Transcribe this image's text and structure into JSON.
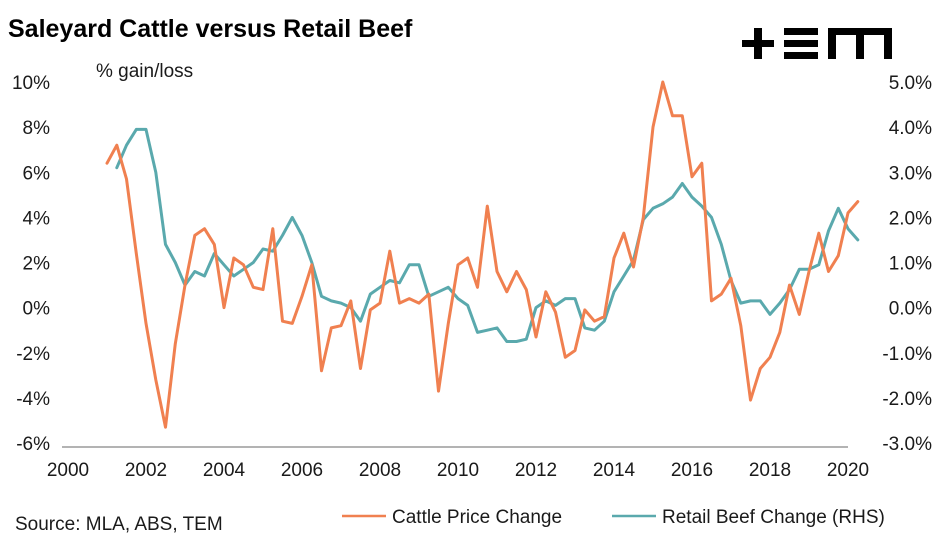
{
  "header": {
    "title": "Saleyard Cattle versus Retail Beef",
    "logo_text": "+EM",
    "source": "Source: MLA, ABS, TEM"
  },
  "chart_data": {
    "type": "line",
    "title": "Saleyard Cattle versus Retail Beef",
    "ylabel": "% gain/loss",
    "xlabel": "",
    "xlim": [
      2000,
      2020
    ],
    "ylim": [
      -6,
      10
    ],
    "y2lim": [
      -3,
      5
    ],
    "grid": false,
    "legend_position": "bottom",
    "x_ticks": [
      "2000",
      "2002",
      "2004",
      "2006",
      "2008",
      "2010",
      "2012",
      "2014",
      "2016",
      "2018",
      "2020"
    ],
    "y_ticks": [
      "10%",
      "8%",
      "6%",
      "4%",
      "2%",
      "0%",
      "-2%",
      "-4%",
      "-6%"
    ],
    "y2_ticks": [
      "5.0%",
      "4.0%",
      "3.0%",
      "2.0%",
      "1.0%",
      "0.0%",
      "-1.0%",
      "-2.0%",
      "-3.0%"
    ],
    "series": [
      {
        "name": "Cattle Price Change",
        "axis": "left",
        "color": "#f08050",
        "x": [
          2001.0,
          2001.25,
          2001.5,
          2001.75,
          2002.0,
          2002.25,
          2002.5,
          2002.75,
          2003.0,
          2003.25,
          2003.5,
          2003.75,
          2004.0,
          2004.25,
          2004.5,
          2004.75,
          2005.0,
          2005.25,
          2005.5,
          2005.75,
          2006.0,
          2006.25,
          2006.5,
          2006.75,
          2007.0,
          2007.25,
          2007.5,
          2007.75,
          2008.0,
          2008.25,
          2008.5,
          2008.75,
          2009.0,
          2009.25,
          2009.5,
          2009.75,
          2010.0,
          2010.25,
          2010.5,
          2010.75,
          2011.0,
          2011.25,
          2011.5,
          2011.75,
          2012.0,
          2012.25,
          2012.5,
          2012.75,
          2013.0,
          2013.25,
          2013.5,
          2013.75,
          2014.0,
          2014.25,
          2014.5,
          2014.75,
          2015.0,
          2015.25,
          2015.5,
          2015.75,
          2016.0,
          2016.25,
          2016.5,
          2016.75,
          2017.0,
          2017.25,
          2017.5,
          2017.75,
          2018.0,
          2018.25,
          2018.5,
          2018.75,
          2019.0,
          2019.25,
          2019.5,
          2019.75,
          2020.0,
          2020.25
        ],
        "values": [
          6.4,
          7.2,
          5.7,
          2.4,
          -0.7,
          -3.2,
          -5.3,
          -1.6,
          1.0,
          3.2,
          3.5,
          2.8,
          0.0,
          2.2,
          1.9,
          0.9,
          0.8,
          3.5,
          -0.6,
          -0.7,
          0.5,
          1.9,
          -2.8,
          -0.9,
          -0.8,
          0.3,
          -2.7,
          -0.1,
          0.2,
          2.5,
          0.2,
          0.4,
          0.2,
          0.6,
          -3.7,
          -0.7,
          1.9,
          2.2,
          0.9,
          4.5,
          1.6,
          0.7,
          1.6,
          0.8,
          -1.3,
          0.7,
          -0.2,
          -2.2,
          -1.9,
          -0.1,
          -0.6,
          -0.4,
          2.2,
          3.3,
          1.8,
          4.0,
          8.0,
          10.0,
          8.5,
          8.5,
          5.8,
          6.4,
          0.3,
          0.6,
          1.3,
          -0.8,
          -4.1,
          -2.7,
          -2.2,
          -1.1,
          1.0,
          -0.3,
          1.6,
          3.3,
          1.6,
          2.3,
          4.2,
          4.7
        ]
      },
      {
        "name": "Retail Beef Change (RHS)",
        "axis": "right",
        "color": "#5aa9ad",
        "x": [
          2001.25,
          2001.5,
          2001.75,
          2002.0,
          2002.25,
          2002.5,
          2002.75,
          2003.0,
          2003.25,
          2003.5,
          2003.75,
          2004.0,
          2004.25,
          2004.5,
          2004.75,
          2005.0,
          2005.25,
          2005.5,
          2005.75,
          2006.0,
          2006.25,
          2006.5,
          2006.75,
          2007.0,
          2007.25,
          2007.5,
          2007.75,
          2008.0,
          2008.25,
          2008.5,
          2008.75,
          2009.0,
          2009.25,
          2009.5,
          2009.75,
          2010.0,
          2010.25,
          2010.5,
          2010.75,
          2011.0,
          2011.25,
          2011.5,
          2011.75,
          2012.0,
          2012.25,
          2012.5,
          2012.75,
          2013.0,
          2013.25,
          2013.5,
          2013.75,
          2014.0,
          2014.25,
          2014.5,
          2014.75,
          2015.0,
          2015.25,
          2015.5,
          2015.75,
          2016.0,
          2016.25,
          2016.5,
          2016.75,
          2017.0,
          2017.25,
          2017.5,
          2017.75,
          2018.0,
          2018.25,
          2018.5,
          2018.75,
          2019.0,
          2019.25,
          2019.5,
          2019.75,
          2020.0,
          2020.25
        ],
        "values": [
          3.1,
          3.6,
          3.95,
          3.95,
          3.0,
          1.4,
          1.0,
          0.5,
          0.8,
          0.7,
          1.2,
          0.95,
          0.7,
          0.85,
          1.0,
          1.3,
          1.25,
          1.6,
          2.0,
          1.6,
          1.0,
          0.25,
          0.15,
          0.1,
          0.0,
          -0.3,
          0.3,
          0.45,
          0.6,
          0.55,
          0.95,
          0.95,
          0.25,
          0.35,
          0.45,
          0.2,
          0.05,
          -0.55,
          -0.5,
          -0.45,
          -0.75,
          -0.75,
          -0.7,
          0.0,
          0.15,
          0.05,
          0.2,
          0.2,
          -0.45,
          -0.5,
          -0.3,
          0.35,
          0.7,
          1.05,
          1.95,
          2.2,
          2.3,
          2.45,
          2.75,
          2.45,
          2.25,
          2.0,
          1.4,
          0.6,
          0.1,
          0.15,
          0.15,
          -0.15,
          0.1,
          0.4,
          0.85,
          0.85,
          0.95,
          1.7,
          2.2,
          1.75,
          1.5
        ]
      }
    ]
  }
}
